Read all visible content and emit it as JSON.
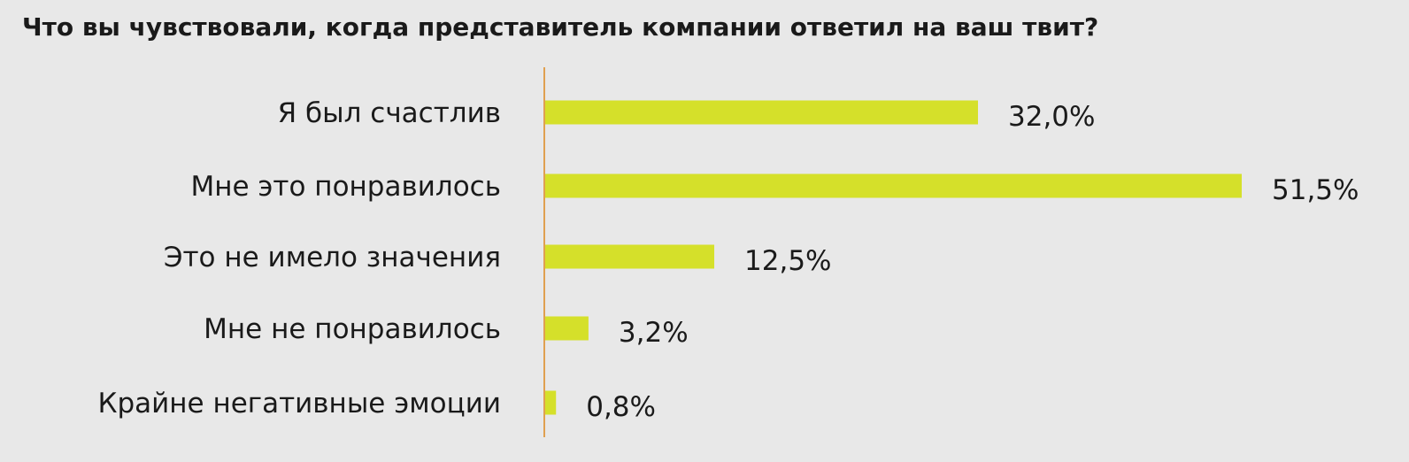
{
  "chart_data": {
    "type": "bar",
    "orientation": "horizontal",
    "title": "Что вы чувствовали, когда представитель компании ответил на ваш твит?",
    "categories": [
      "Я был счастлив",
      "Мне это понравилось",
      "Это не имело значения",
      "Мне не понравилось",
      "Крайне негативные эмоции"
    ],
    "values": [
      32.0,
      51.5,
      12.5,
      3.2,
      0.8
    ],
    "value_labels": [
      "32,0%",
      "51,5%",
      "12,5%",
      "3,2%",
      "0,8%"
    ],
    "unit": "%",
    "xlabel": "",
    "ylabel": "",
    "xlim": [
      0,
      51.5
    ],
    "grid": false,
    "legend": "none",
    "colors": {
      "bar": "#d5e02a",
      "axis": "#e0a050",
      "background": "#e8e8e8",
      "text": "#1a1a1a"
    }
  }
}
